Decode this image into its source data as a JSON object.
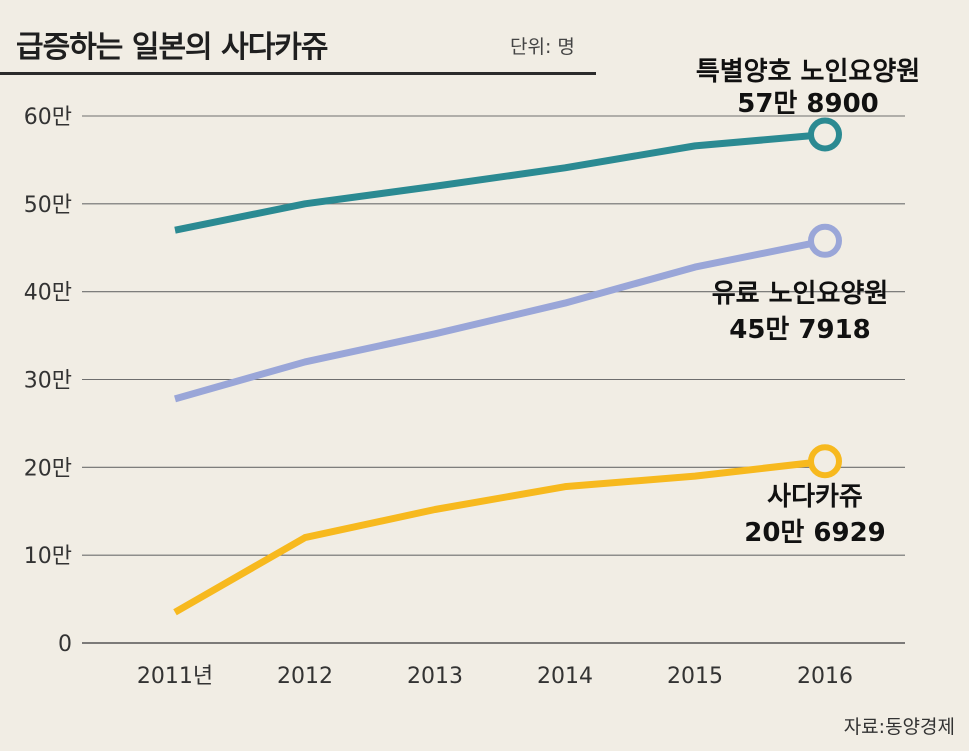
{
  "header": {
    "title": "급증하는 일본의 사다카쥬",
    "unit": "단위: 명"
  },
  "source": "자료:동양경제",
  "chart_data": {
    "type": "line",
    "x": [
      2011,
      2012,
      2013,
      2014,
      2015,
      2016
    ],
    "x_tick_labels": [
      "2011년",
      "2012",
      "2013",
      "2014",
      "2015",
      "2016"
    ],
    "y_tick_labels": [
      "0",
      "10만",
      "20만",
      "30만",
      "40만",
      "50만",
      "60만"
    ],
    "y_ticks": [
      0,
      100000,
      200000,
      300000,
      400000,
      500000,
      600000
    ],
    "ylim": [
      0,
      600000
    ],
    "grid": true,
    "series": [
      {
        "name": "특별양호 노인요양원",
        "values": [
          470000,
          500000,
          520000,
          541000,
          566000,
          578900
        ],
        "color": "#2b8a92",
        "end_label_name": "특별양호 노인요양원",
        "end_label_value": "57만 8900"
      },
      {
        "name": "유료 노인요양원",
        "values": [
          278000,
          320000,
          352000,
          387000,
          428000,
          457918
        ],
        "color": "#9aa6d8",
        "end_label_name": "유료 노인요양원",
        "end_label_value": "45만 7918"
      },
      {
        "name": "사다카쥬",
        "values": [
          35000,
          120000,
          152000,
          178000,
          190000,
          206929
        ],
        "color": "#f7b91e",
        "end_label_name": "사다카쥬",
        "end_label_value": "20만 6929"
      }
    ]
  }
}
